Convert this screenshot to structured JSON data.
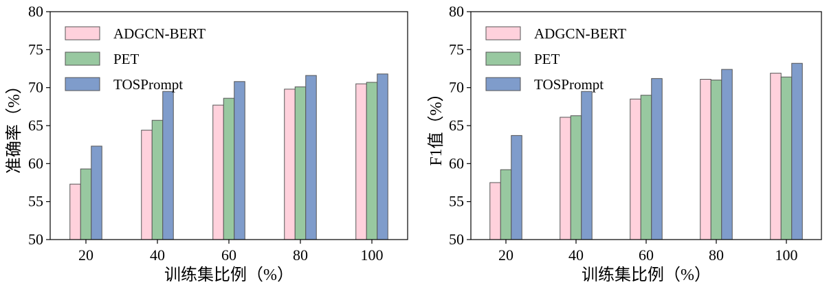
{
  "chart_data": [
    {
      "type": "bar",
      "categories": [
        "20",
        "40",
        "60",
        "80",
        "100"
      ],
      "series": [
        {
          "name": "ADGCN-BERT",
          "values": [
            57.3,
            64.4,
            67.7,
            69.8,
            70.5
          ]
        },
        {
          "name": "PET",
          "values": [
            59.3,
            65.7,
            68.6,
            70.1,
            70.7
          ]
        },
        {
          "name": "TOSPrompt",
          "values": [
            62.3,
            69.5,
            70.8,
            71.6,
            71.8
          ]
        }
      ],
      "xlabel": "训练集比例（%）",
      "ylabel": "准确率（%）",
      "ylim": [
        50,
        80
      ],
      "yticks": [
        50,
        55,
        60,
        65,
        70,
        75,
        80
      ],
      "grid": false,
      "legend_position": "top-left"
    },
    {
      "type": "bar",
      "categories": [
        "20",
        "40",
        "60",
        "80",
        "100"
      ],
      "series": [
        {
          "name": "ADGCN-BERT",
          "values": [
            57.5,
            66.1,
            68.5,
            71.1,
            71.9
          ]
        },
        {
          "name": "PET",
          "values": [
            59.2,
            66.3,
            69.0,
            71.0,
            71.4
          ]
        },
        {
          "name": "TOSPrompt",
          "values": [
            63.7,
            69.5,
            71.2,
            72.4,
            73.2
          ]
        }
      ],
      "xlabel": "训练集比例（%）",
      "ylabel": "F1值（%）",
      "ylim": [
        50,
        80
      ],
      "yticks": [
        50,
        55,
        60,
        65,
        70,
        75,
        80
      ],
      "grid": false,
      "legend_position": "top-left"
    }
  ],
  "colors": {
    "ADGCN-BERT": "#FFD1DC",
    "PET": "#98C8A0",
    "TOSPrompt": "#7F9CCB",
    "edge": "#555555",
    "axis": "#000000"
  }
}
